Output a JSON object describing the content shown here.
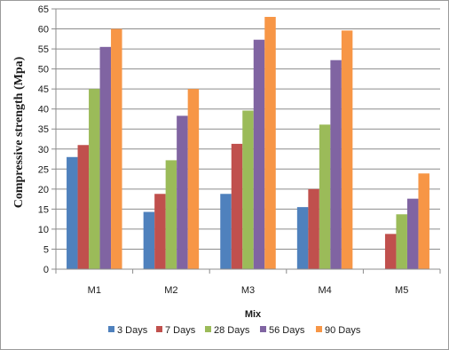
{
  "chart_data": {
    "type": "bar",
    "title": "",
    "xlabel": "Mix",
    "ylabel": "Compressive strength (Mpa)",
    "ylim": [
      0,
      65
    ],
    "yticks": [
      0,
      5,
      10,
      15,
      20,
      25,
      30,
      35,
      40,
      45,
      50,
      55,
      60,
      65
    ],
    "grid": true,
    "legend_position": "bottom",
    "categories": [
      "M1",
      "M2",
      "M3",
      "M4",
      "M5"
    ],
    "series": [
      {
        "name": "3 Days",
        "color": "#4F81BD",
        "values": [
          28,
          14.3,
          18.8,
          15.5,
          null
        ]
      },
      {
        "name": "7 Days",
        "color": "#C0504D",
        "values": [
          31,
          18.8,
          31.3,
          20,
          8.8
        ]
      },
      {
        "name": "28 Days",
        "color": "#9BBB59",
        "values": [
          45,
          27.2,
          39.6,
          36.1,
          13.7
        ]
      },
      {
        "name": "56 Days",
        "color": "#8064A2",
        "values": [
          55.5,
          38.3,
          57.3,
          52.2,
          17.6
        ]
      },
      {
        "name": "90 Days",
        "color": "#F79646",
        "values": [
          60,
          45,
          63,
          59.6,
          23.9
        ]
      }
    ]
  }
}
